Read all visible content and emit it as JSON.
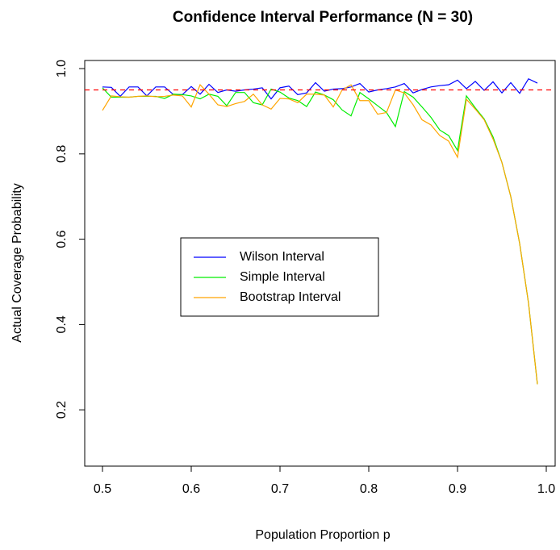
{
  "chart_data": {
    "type": "line",
    "title": "Confidence Interval Performance (N = 30)",
    "x_label": "Population Proportion p",
    "y_label": "Actual Coverage Probability",
    "x": [
      0.5,
      0.51,
      0.52,
      0.53,
      0.54,
      0.55,
      0.56,
      0.57,
      0.58,
      0.59,
      0.6,
      0.61,
      0.62,
      0.63,
      0.64,
      0.65,
      0.66,
      0.67,
      0.68,
      0.69,
      0.7,
      0.71,
      0.72,
      0.73,
      0.74,
      0.75,
      0.76,
      0.77,
      0.78,
      0.79,
      0.8,
      0.81,
      0.82,
      0.83,
      0.84,
      0.85,
      0.86,
      0.87,
      0.88,
      0.89,
      0.9,
      0.91,
      0.92,
      0.93,
      0.94,
      0.95,
      0.96,
      0.97,
      0.98,
      0.99
    ],
    "series": [
      {
        "name": "Wilson Interval",
        "color": "#0000ff",
        "values": [
          0.957,
          0.956,
          0.935,
          0.957,
          0.957,
          0.936,
          0.957,
          0.957,
          0.939,
          0.939,
          0.958,
          0.94,
          0.963,
          0.944,
          0.95,
          0.947,
          0.95,
          0.952,
          0.955,
          0.929,
          0.955,
          0.959,
          0.939,
          0.943,
          0.967,
          0.947,
          0.952,
          0.953,
          0.957,
          0.965,
          0.945,
          0.95,
          0.953,
          0.957,
          0.965,
          0.943,
          0.951,
          0.957,
          0.96,
          0.962,
          0.973,
          0.953,
          0.97,
          0.949,
          0.969,
          0.943,
          0.967,
          0.942,
          0.976,
          0.966
        ]
      },
      {
        "name": "Simple Interval",
        "color": "#00ee00",
        "values": [
          0.955,
          0.933,
          0.933,
          0.933,
          0.935,
          0.935,
          0.935,
          0.93,
          0.94,
          0.939,
          0.936,
          0.929,
          0.94,
          0.935,
          0.913,
          0.944,
          0.944,
          0.92,
          0.915,
          0.952,
          0.945,
          0.931,
          0.925,
          0.911,
          0.945,
          0.938,
          0.927,
          0.903,
          0.889,
          0.944,
          0.929,
          0.913,
          0.897,
          0.864,
          0.946,
          0.933,
          0.91,
          0.886,
          0.856,
          0.843,
          0.808,
          0.936,
          0.908,
          0.882,
          0.84,
          0.78,
          0.7,
          0.59,
          0.45,
          0.26
        ]
      },
      {
        "name": "Bootstrap Interval",
        "color": "#ffa500",
        "values": [
          0.902,
          0.936,
          0.934,
          0.933,
          0.935,
          0.936,
          0.934,
          0.935,
          0.938,
          0.936,
          0.91,
          0.962,
          0.94,
          0.915,
          0.911,
          0.918,
          0.923,
          0.94,
          0.915,
          0.905,
          0.93,
          0.929,
          0.92,
          0.94,
          0.94,
          0.938,
          0.91,
          0.95,
          0.962,
          0.925,
          0.925,
          0.893,
          0.897,
          0.95,
          0.943,
          0.915,
          0.88,
          0.868,
          0.843,
          0.83,
          0.792,
          0.928,
          0.905,
          0.88,
          0.835,
          0.78,
          0.7,
          0.59,
          0.45,
          0.26
        ]
      }
    ],
    "hline": 0.95,
    "hline_color": "#ff0000",
    "xlim": [
      0.48,
      1.01
    ],
    "ylim": [
      0.068,
      1.019
    ],
    "xticks": [
      0.5,
      0.6,
      0.7,
      0.8,
      0.9,
      {
        "value": 1,
        "label": "1.0"
      }
    ],
    "yticks": [
      0.2,
      0.4,
      0.6,
      0.8,
      {
        "value": 1,
        "label": "1.0"
      }
    ],
    "legend": "center"
  }
}
